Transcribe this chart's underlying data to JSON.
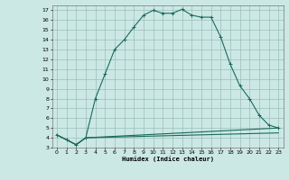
{
  "xlabel": "Humidex (Indice chaleur)",
  "xlim": [
    -0.5,
    23.5
  ],
  "ylim": [
    3,
    17.5
  ],
  "xticks": [
    0,
    1,
    2,
    3,
    4,
    5,
    6,
    7,
    8,
    9,
    10,
    11,
    12,
    13,
    14,
    15,
    16,
    17,
    18,
    19,
    20,
    21,
    22,
    23
  ],
  "yticks": [
    3,
    4,
    5,
    6,
    7,
    8,
    9,
    10,
    11,
    12,
    13,
    14,
    15,
    16,
    17
  ],
  "bg_color": "#cce8e4",
  "line_color": "#1a6b5a",
  "curve1_x": [
    0,
    1,
    2,
    3,
    4,
    5,
    6,
    7,
    8,
    9,
    10,
    11,
    12,
    13,
    14,
    15,
    16,
    17,
    18,
    19,
    20,
    21,
    22,
    23
  ],
  "curve1_y": [
    4.3,
    3.8,
    3.3,
    4.0,
    8.0,
    10.5,
    13.0,
    14.0,
    15.3,
    16.5,
    17.0,
    16.7,
    16.7,
    17.1,
    16.5,
    16.3,
    16.3,
    14.3,
    11.5,
    9.3,
    8.0,
    6.3,
    5.3,
    5.0
  ],
  "curve2_x": [
    0,
    2,
    3,
    23
  ],
  "curve2_y": [
    4.3,
    3.3,
    4.0,
    5.0
  ],
  "curve3_x": [
    0,
    2,
    3,
    23
  ],
  "curve3_y": [
    4.3,
    3.3,
    4.0,
    4.5
  ]
}
